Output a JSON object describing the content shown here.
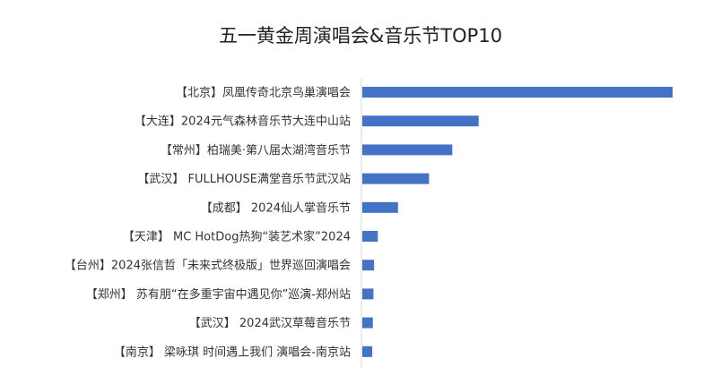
{
  "chart_data": {
    "type": "bar",
    "orientation": "horizontal",
    "title": "五一黄金周演唱会&音乐节TOP10",
    "categories": [
      "【北京】凤凰传奇北京鸟巢演唱会",
      "【大连】2024元气森林音乐节大连中山站",
      "【常州】柏瑞美·第八届太湖湾音乐节",
      "【武汉】 FULLHOUSE满堂音乐节武汉站",
      "【成都】 2024仙人掌音乐节",
      "【天津】 MC HotDog热狗“装艺术家”2024",
      "【台州】2024张信哲「未来式终极版」世界巡回演唱会",
      "【郑州】 苏有朋“在多重宇宙中遇见你”巡演-郑州站",
      "【武汉】 2024武汉草莓音乐节",
      "【南京】 梁咏琪 时间遇上我们 演唱会-南京站"
    ],
    "values": [
      100,
      37.5,
      29,
      21.5,
      11.5,
      5,
      3.8,
      3.6,
      3.4,
      3.2
    ],
    "xlim": [
      0,
      100
    ],
    "grid": false,
    "legend": "none",
    "bar_color": "#4472C4",
    "axis_color": "#d9d9d9"
  }
}
